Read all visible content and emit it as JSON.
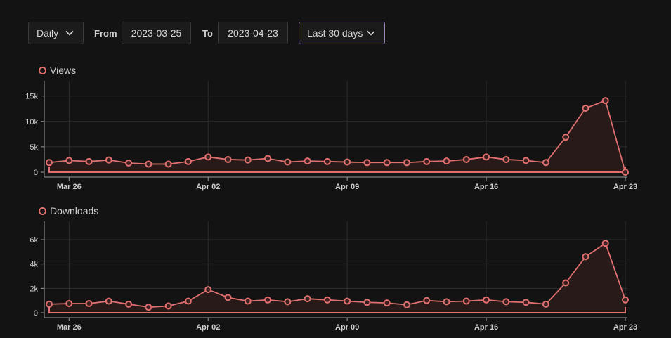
{
  "toolbar": {
    "granularity": "Daily",
    "from_label": "From",
    "from_date": "2023-03-25",
    "to_label": "To",
    "to_date": "2023-04-23",
    "range": "Last 30 days"
  },
  "colors": {
    "series": "#e07070",
    "fill": "#2a1a1a",
    "grid": "#2e2e2e",
    "axis": "#9a9a9a",
    "range_border": "#9a86b8"
  },
  "chart_data": [
    {
      "type": "area",
      "legend": "Views",
      "x": [
        "2023-03-25",
        "2023-03-26",
        "2023-03-27",
        "2023-03-28",
        "2023-03-29",
        "2023-03-30",
        "2023-03-31",
        "2023-04-01",
        "2023-04-02",
        "2023-04-03",
        "2023-04-04",
        "2023-04-05",
        "2023-04-06",
        "2023-04-07",
        "2023-04-08",
        "2023-04-09",
        "2023-04-10",
        "2023-04-11",
        "2023-04-12",
        "2023-04-13",
        "2023-04-14",
        "2023-04-15",
        "2023-04-16",
        "2023-04-17",
        "2023-04-18",
        "2023-04-19",
        "2023-04-20",
        "2023-04-21",
        "2023-04-22",
        "2023-04-23"
      ],
      "values": [
        1900,
        2300,
        2100,
        2400,
        1800,
        1600,
        1600,
        2100,
        3000,
        2500,
        2400,
        2700,
        2000,
        2200,
        2100,
        2000,
        1900,
        1900,
        1900,
        2100,
        2200,
        2500,
        3000,
        2500,
        2300,
        1900,
        6900,
        12600,
        14100,
        0
      ],
      "x_ticks": [
        "Mar 26",
        "Apr 02",
        "Apr 09",
        "Apr 16",
        "Apr 23"
      ],
      "y_ticks": [
        "0",
        "5k",
        "10k",
        "15k"
      ],
      "y_tick_values": [
        0,
        5000,
        10000,
        15000
      ],
      "ylim": [
        0,
        18000
      ]
    },
    {
      "type": "area",
      "legend": "Downloads",
      "x": [
        "2023-03-25",
        "2023-03-26",
        "2023-03-27",
        "2023-03-28",
        "2023-03-29",
        "2023-03-30",
        "2023-03-31",
        "2023-04-01",
        "2023-04-02",
        "2023-04-03",
        "2023-04-04",
        "2023-04-05",
        "2023-04-06",
        "2023-04-07",
        "2023-04-08",
        "2023-04-09",
        "2023-04-10",
        "2023-04-11",
        "2023-04-12",
        "2023-04-13",
        "2023-04-14",
        "2023-04-15",
        "2023-04-16",
        "2023-04-17",
        "2023-04-18",
        "2023-04-19",
        "2023-04-20",
        "2023-04-21",
        "2023-04-22",
        "2023-04-23"
      ],
      "values": [
        700,
        750,
        750,
        950,
        700,
        450,
        550,
        950,
        1900,
        1250,
        950,
        1050,
        900,
        1150,
        1050,
        950,
        850,
        800,
        650,
        1000,
        900,
        950,
        1050,
        900,
        850,
        700,
        2450,
        4600,
        5700,
        1050
      ],
      "x_ticks": [
        "Mar 26",
        "Apr 02",
        "Apr 09",
        "Apr 16",
        "Apr 23"
      ],
      "y_ticks": [
        "0",
        "2k",
        "4k",
        "6k"
      ],
      "y_tick_values": [
        0,
        2000,
        4000,
        6000
      ],
      "ylim": [
        0,
        7500
      ]
    }
  ]
}
